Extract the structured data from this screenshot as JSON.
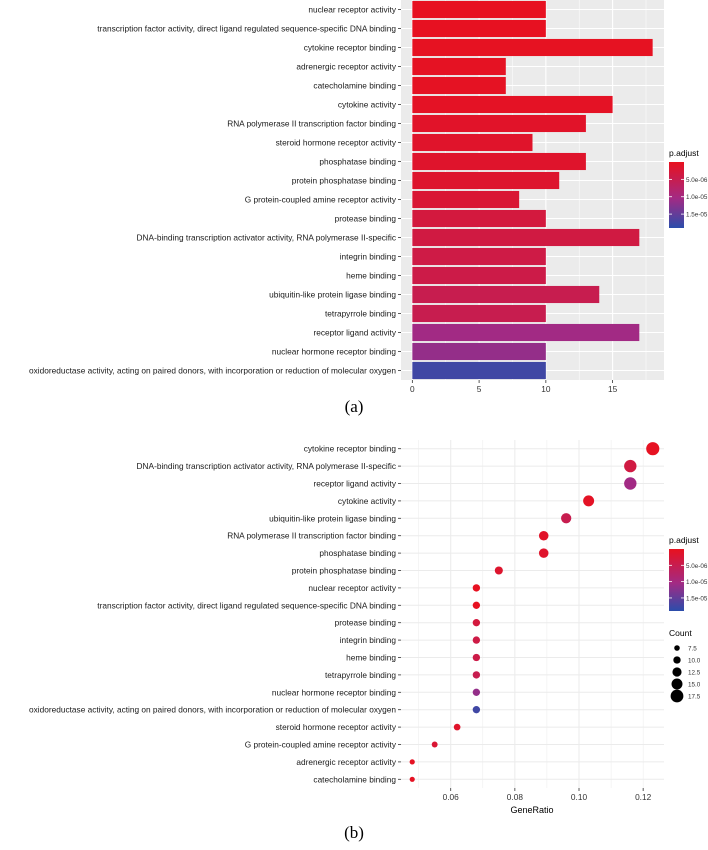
{
  "panel_a_caption": "(a)",
  "panel_b_caption": "(b)",
  "chart_data": [
    {
      "type": "bar",
      "orientation": "horizontal",
      "categories": [
        "nuclear receptor activity",
        "transcription factor activity, direct ligand regulated sequence-specific DNA binding",
        "cytokine receptor binding",
        "adrenergic receptor activity",
        "catecholamine binding",
        "cytokine activity",
        "RNA polymerase II transcription factor binding",
        "steroid hormone receptor activity",
        "phosphatase binding",
        "protein phosphatase binding",
        "G protein-coupled amine receptor activity",
        "protease binding",
        "DNA-binding transcription activator activity, RNA polymerase II-specific",
        "integrin binding",
        "heme binding",
        "ubiquitin-like protein ligase binding",
        "tetrapyrrole binding",
        "receptor ligand activity",
        "nuclear hormone receptor binding",
        "oxidoreductase activity, acting on paired donors, with incorporation or reduction of molecular oxygen"
      ],
      "values": [
        10,
        10,
        18,
        7,
        7,
        15,
        13,
        9,
        13,
        11,
        8,
        10,
        17,
        10,
        10,
        14,
        10,
        17,
        10,
        10
      ],
      "p_adjust": [
        2e-07,
        2e-07,
        3e-07,
        4e-07,
        4e-07,
        6e-07,
        1e-06,
        1.2e-06,
        1.3e-06,
        1.6e-06,
        2.2e-06,
        3.2e-06,
        3.6e-06,
        4e-06,
        4.2e-06,
        5e-06,
        5e-06,
        1.05e-05,
        1.15e-05,
        1.75e-05
      ],
      "x_ticks": [
        "0",
        "5",
        "10",
        "15"
      ],
      "xlim": [
        -0.85,
        18.85
      ],
      "legend": {
        "title": "p.adjust",
        "labels": [
          "5.0e-06",
          "1.0e-05",
          "1.5e-05"
        ],
        "placement": "right"
      },
      "color_scale": {
        "low": "#e8111f",
        "high": "#2b4dab",
        "min": 0,
        "max": 1.9e-05
      },
      "grid": true,
      "panel_background": "#ebebeb"
    },
    {
      "type": "scatter",
      "categories": [
        "cytokine receptor binding",
        "DNA-binding transcription activator activity, RNA polymerase II-specific",
        "receptor ligand activity",
        "cytokine activity",
        "ubiquitin-like protein ligase binding",
        "RNA polymerase II transcription factor binding",
        "phosphatase binding",
        "protein phosphatase binding",
        "nuclear receptor activity",
        "transcription factor activity, direct ligand regulated sequence-specific DNA binding",
        "protease binding",
        "integrin binding",
        "heme binding",
        "tetrapyrrole binding",
        "nuclear hormone receptor binding",
        "oxidoreductase activity, acting on paired donors, with incorporation or reduction of molecular oxygen",
        "steroid hormone receptor activity",
        "G protein-coupled amine receptor activity",
        "adrenergic receptor activity",
        "catecholamine binding"
      ],
      "gene_ratio": [
        0.123,
        0.116,
        0.116,
        0.103,
        0.096,
        0.089,
        0.089,
        0.075,
        0.068,
        0.068,
        0.068,
        0.068,
        0.068,
        0.068,
        0.068,
        0.068,
        0.062,
        0.055,
        0.048,
        0.048
      ],
      "count": [
        18,
        17,
        17,
        15,
        14,
        13,
        13,
        11,
        10,
        10,
        10,
        10,
        10,
        10,
        10,
        10,
        9,
        8,
        7,
        7
      ],
      "p_adjust": [
        3e-07,
        3.6e-06,
        1.05e-05,
        6e-07,
        5e-06,
        1e-06,
        1.3e-06,
        1.6e-06,
        2e-07,
        2e-07,
        3.2e-06,
        4e-06,
        4.2e-06,
        5e-06,
        1.15e-05,
        1.75e-05,
        1.2e-06,
        2.2e-06,
        4e-07,
        4e-07
      ],
      "xlabel": "GeneRatio",
      "x_ticks": [
        "0.06",
        "0.08",
        "0.10",
        "0.12"
      ],
      "x_tick_values": [
        0.06,
        0.08,
        0.1,
        0.12
      ],
      "xlim": [
        0.0445,
        0.1265
      ],
      "legend_color": {
        "title": "p.adjust",
        "labels": [
          "5.0e-06",
          "1.0e-05",
          "1.5e-05"
        ],
        "placement": "right"
      },
      "legend_size": {
        "title": "Count",
        "labels": [
          "7.5",
          "10.0",
          "12.5",
          "15.0",
          "17.5"
        ],
        "values": [
          7.5,
          10,
          12.5,
          15,
          17.5
        ]
      },
      "color_scale": {
        "low": "#e8111f",
        "high": "#2b4dab",
        "min": 0,
        "max": 1.9e-05
      },
      "grid": true,
      "panel_background": "#ffffff"
    }
  ]
}
